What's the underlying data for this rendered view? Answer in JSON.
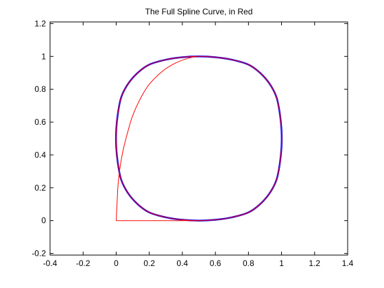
{
  "chart_data": {
    "type": "line",
    "title": "The Full Spline Curve, in Red",
    "xlabel": "",
    "ylabel": "",
    "xlim": [
      -0.4,
      1.4
    ],
    "ylim": [
      -0.21,
      1.21
    ],
    "xticks": [
      -0.4,
      -0.2,
      0,
      0.2,
      0.4,
      0.6,
      0.8,
      1,
      1.2,
      1.4
    ],
    "xtick_labels": [
      "-0.4",
      "-0.2",
      "0",
      "0.2",
      "0.4",
      "0.6",
      "0.8",
      "1",
      "1.2",
      "1.4"
    ],
    "yticks": [
      -0.2,
      0,
      0.2,
      0.4,
      0.6,
      0.8,
      1,
      1.2
    ],
    "ytick_labels": [
      "-0.2",
      "0",
      "0.2",
      "0.4",
      "0.6",
      "0.8",
      "1",
      "1.2"
    ],
    "grid": false,
    "legend": "none",
    "colors": {
      "background": "#ffffff",
      "axes": "#000000",
      "blue_curve": "#0000ff",
      "red_curve": "#ff0000"
    },
    "series": [
      {
        "color": "#0000ff",
        "width": 2.5,
        "closed": true,
        "x": [
          0.5,
          0.6,
          0.7,
          0.8,
          0.87,
          0.93,
          0.97,
          0.99,
          1.0,
          1.0,
          0.99,
          0.97,
          0.93,
          0.87,
          0.8,
          0.7,
          0.6,
          0.5,
          0.4,
          0.3,
          0.2,
          0.13,
          0.07,
          0.03,
          0.01,
          0.0,
          0.0,
          0.01,
          0.03,
          0.07,
          0.13,
          0.2,
          0.3,
          0.4
        ],
        "y": [
          1.0,
          0.995,
          0.98,
          0.95,
          0.9,
          0.83,
          0.75,
          0.65,
          0.55,
          0.45,
          0.35,
          0.25,
          0.17,
          0.1,
          0.05,
          0.02,
          0.005,
          0.0,
          0.005,
          0.02,
          0.05,
          0.1,
          0.17,
          0.25,
          0.35,
          0.45,
          0.55,
          0.65,
          0.75,
          0.83,
          0.9,
          0.95,
          0.98,
          0.995
        ]
      },
      {
        "color": "#ff0000",
        "width": 1,
        "closed": false,
        "x": [
          0.0,
          0.005,
          0.01,
          0.02,
          0.04,
          0.07,
          0.1,
          0.15,
          0.2,
          0.28,
          0.36,
          0.44,
          0.5,
          0.6,
          0.7,
          0.8,
          0.87,
          0.93,
          0.97,
          0.99,
          1.0,
          1.0,
          0.99,
          0.97,
          0.93,
          0.87,
          0.8,
          0.7,
          0.6,
          0.5,
          0.4,
          0.3,
          0.2,
          0.13,
          0.07,
          0.03,
          0.01,
          0.0,
          0.0,
          0.01,
          0.03,
          0.07,
          0.13,
          0.2,
          0.3,
          0.4,
          0.48,
          0.5
        ],
        "y": [
          0.0,
          0.1,
          0.2,
          0.3,
          0.42,
          0.54,
          0.64,
          0.75,
          0.83,
          0.91,
          0.96,
          0.99,
          1.0,
          0.995,
          0.98,
          0.95,
          0.9,
          0.83,
          0.75,
          0.65,
          0.55,
          0.45,
          0.35,
          0.25,
          0.17,
          0.1,
          0.05,
          0.02,
          0.005,
          0.0,
          0.005,
          0.02,
          0.05,
          0.1,
          0.17,
          0.25,
          0.35,
          0.45,
          0.55,
          0.65,
          0.75,
          0.83,
          0.9,
          0.95,
          0.98,
          0.995,
          1.0,
          1.0
        ]
      },
      {
        "color": "#ff0000",
        "width": 1,
        "closed": false,
        "x": [
          0.0,
          0.5
        ],
        "y": [
          0.0,
          0.0
        ]
      }
    ]
  }
}
